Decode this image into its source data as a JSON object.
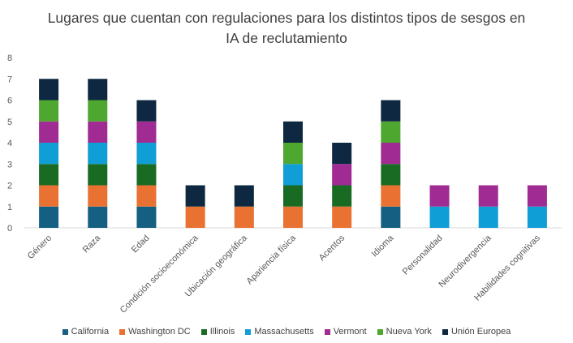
{
  "chart_data": {
    "type": "bar",
    "stacked": true,
    "title_lines": [
      "Lugares que cuentan con regulaciones para los distintos tipos de sesgos en",
      "IA de reclutamiento"
    ],
    "categories": [
      "Género",
      "Raza",
      "Edad",
      "Condición socioeconómica",
      "Ubicación geográfica",
      "Apariencia física",
      "Acentos",
      "Idioma",
      "Personalidad",
      "Neurodivergencia",
      "Habilidades cognitivas"
    ],
    "ylim": [
      0,
      8
    ],
    "yticks": [
      0,
      1,
      2,
      3,
      4,
      5,
      6,
      7,
      8
    ],
    "series": [
      {
        "name": "California",
        "color": "#156082",
        "values": [
          1,
          1,
          1,
          0,
          0,
          0,
          0,
          1,
          0,
          0,
          0
        ]
      },
      {
        "name": "Washington DC",
        "color": "#E97132",
        "values": [
          1,
          1,
          1,
          1,
          1,
          1,
          1,
          1,
          0,
          0,
          0
        ]
      },
      {
        "name": "Illinois",
        "color": "#196B24",
        "values": [
          1,
          1,
          1,
          0,
          0,
          1,
          1,
          1,
          0,
          0,
          0
        ]
      },
      {
        "name": "Massachusetts",
        "color": "#0F9ED5",
        "values": [
          1,
          1,
          1,
          0,
          0,
          1,
          0,
          0,
          1,
          1,
          1
        ]
      },
      {
        "name": "Vermont",
        "color": "#A02B93",
        "values": [
          1,
          1,
          1,
          0,
          0,
          0,
          1,
          1,
          1,
          1,
          1
        ]
      },
      {
        "name": "Nueva York",
        "color": "#4EA72E",
        "values": [
          1,
          1,
          0,
          0,
          0,
          1,
          0,
          1,
          0,
          0,
          0
        ]
      },
      {
        "name": "Unión Europea",
        "color": "#0E2841",
        "values": [
          1,
          1,
          1,
          1,
          1,
          1,
          1,
          1,
          0,
          0,
          0
        ]
      }
    ],
    "legend_position": "bottom"
  }
}
